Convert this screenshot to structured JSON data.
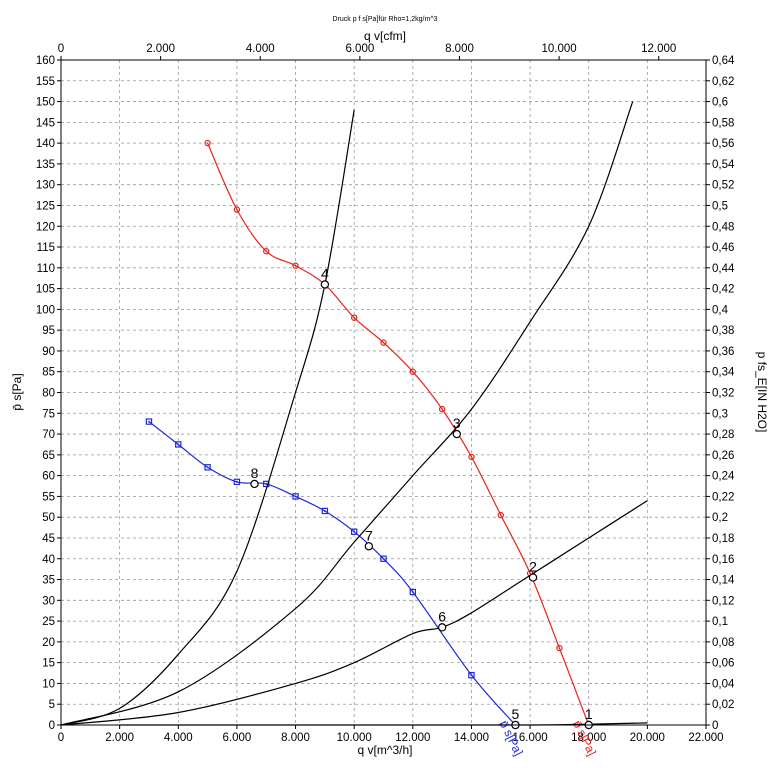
{
  "chart_data": {
    "type": "line",
    "title": "Druck p f s[Pa]für Rho=1,2kg/m^3",
    "x_bottom": {
      "label": "q v[m^3/h]",
      "range": [
        0,
        22000
      ],
      "ticks": [
        "0",
        "2.000",
        "4.000",
        "6.000",
        "8.000",
        "10.000",
        "12.000",
        "14.000",
        "16.000",
        "18.000",
        "20.000",
        "22.000"
      ]
    },
    "x_top": {
      "label": "q v[cfm]",
      "range_m3h": [
        0,
        22000
      ],
      "cfm_per_m3h": 0.5886,
      "tick_values": [
        0,
        2000,
        4000,
        6000,
        8000,
        10000,
        12000
      ],
      "ticks": [
        "0",
        "2.000",
        "4.000",
        "6.000",
        "8.000",
        "10.000",
        "12.000"
      ]
    },
    "y_left": {
      "label": "p̄ s[Pa]",
      "range": [
        0,
        160
      ],
      "ticks": [
        "0",
        "5",
        "10",
        "15",
        "20",
        "25",
        "30",
        "35",
        "40",
        "45",
        "50",
        "55",
        "60",
        "65",
        "70",
        "75",
        "80",
        "85",
        "90",
        "95",
        "100",
        "105",
        "110",
        "115",
        "120",
        "125",
        "130",
        "135",
        "140",
        "145",
        "150",
        "155",
        "160"
      ]
    },
    "y_right": {
      "label": "p fs_E[IN H2O]",
      "range": [
        0,
        0.64
      ],
      "ticks": [
        "0",
        "0,02",
        "0,04",
        "0,06",
        "0,08",
        "0,1",
        "0,12",
        "0,14",
        "0,16",
        "0,18",
        "0,2",
        "0,22",
        "0,24",
        "0,26",
        "0,28",
        "0,3",
        "0,32",
        "0,34",
        "0,36",
        "0,38",
        "0,4",
        "0,42",
        "0,44",
        "0,46",
        "0,48",
        "0,5",
        "0,52",
        "0,54",
        "0,56",
        "0,58",
        "0,6",
        "0,62",
        "0,64"
      ]
    },
    "grid": true,
    "series": [
      {
        "name": "p̄ s[Pa]",
        "color": "#e8231e",
        "marker": "circle",
        "x": [
          5000,
          6000,
          7000,
          8000,
          9000,
          10000,
          11000,
          12000,
          13000,
          14000,
          15000,
          16000,
          17000,
          18000
        ],
        "y": [
          140,
          124,
          114,
          110.5,
          106,
          98,
          92,
          85,
          76,
          64.5,
          50.5,
          36.5,
          18.5,
          0
        ],
        "end_label": "p̄ s[Pa]"
      },
      {
        "name": "p̄ s[Pa]",
        "color": "#1e28d8",
        "marker": "square",
        "x": [
          3000,
          4000,
          5000,
          6000,
          7000,
          8000,
          9000,
          10000,
          11000,
          12000,
          14000,
          15500
        ],
        "y": [
          73,
          67.5,
          62,
          58.5,
          58,
          55,
          51.5,
          46.5,
          40,
          32,
          12,
          0
        ],
        "end_label": "p̄ s[Pa]"
      },
      {
        "name": "system-curve-4-8",
        "color": "#000000",
        "marker": "none",
        "x": [
          0,
          2000,
          4000,
          6000,
          8000,
          9000,
          10000
        ],
        "y": [
          0,
          4,
          17,
          37,
          80,
          106,
          148
        ]
      },
      {
        "name": "system-curve-3-7",
        "color": "#000000",
        "marker": "none",
        "x": [
          0,
          4000,
          8000,
          10000,
          12000,
          14000,
          16000,
          18000,
          19500
        ],
        "y": [
          0,
          8,
          28,
          44,
          60,
          76,
          97,
          120,
          150
        ]
      },
      {
        "name": "system-curve-2-6",
        "color": "#000000",
        "marker": "none",
        "x": [
          0,
          4000,
          8000,
          10000,
          12000,
          13000,
          14000,
          16000,
          18000,
          20000
        ],
        "y": [
          0,
          3,
          10,
          15,
          22,
          23.5,
          27,
          36,
          45,
          54
        ]
      },
      {
        "name": "system-curve-1-5",
        "color": "#000000",
        "marker": "none",
        "x": [
          2000,
          8000,
          15500,
          18000,
          20000
        ],
        "y": [
          0,
          0,
          0,
          0.2,
          0.5
        ]
      }
    ],
    "operating_points": [
      {
        "label": "1",
        "x": 18000,
        "y": 0
      },
      {
        "label": "2",
        "x": 16100,
        "y": 35.5
      },
      {
        "label": "3",
        "x": 13500,
        "y": 70
      },
      {
        "label": "4",
        "x": 9000,
        "y": 106
      },
      {
        "label": "5",
        "x": 15500,
        "y": 0
      },
      {
        "label": "6",
        "x": 13000,
        "y": 23.5
      },
      {
        "label": "7",
        "x": 10500,
        "y": 43
      },
      {
        "label": "8",
        "x": 6600,
        "y": 58
      }
    ]
  }
}
